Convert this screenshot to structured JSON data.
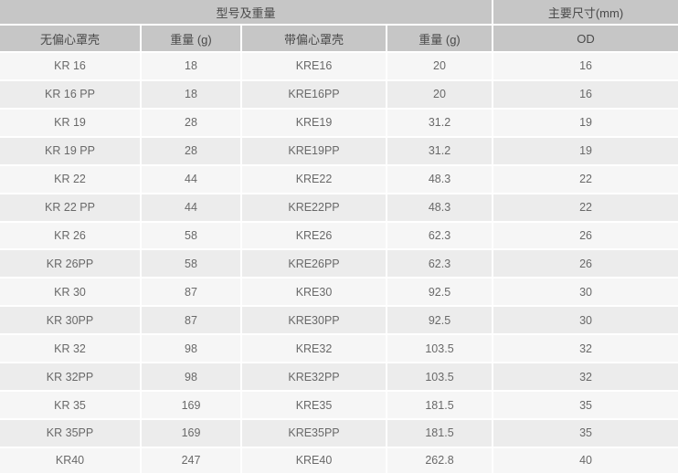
{
  "table": {
    "header_group": {
      "models_weight_label": "型号及重量",
      "main_dimensions_label": "主要尺寸(mm)"
    },
    "columns": [
      "无偏心罩壳",
      "重量 (g)",
      "带偏心罩壳",
      "重量 (g)",
      "OD"
    ],
    "rows": [
      [
        "KR 16",
        "18",
        "KRE16",
        "20",
        "16"
      ],
      [
        "KR 16 PP",
        "18",
        "KRE16PP",
        "20",
        "16"
      ],
      [
        "KR 19",
        "28",
        "KRE19",
        "31.2",
        "19"
      ],
      [
        "KR 19 PP",
        "28",
        "KRE19PP",
        "31.2",
        "19"
      ],
      [
        "KR 22",
        "44",
        "KRE22",
        "48.3",
        "22"
      ],
      [
        "KR 22 PP",
        "44",
        "KRE22PP",
        "48.3",
        "22"
      ],
      [
        "KR 26",
        "58",
        "KRE26",
        "62.3",
        "26"
      ],
      [
        "KR 26PP",
        "58",
        "KRE26PP",
        "62.3",
        "26"
      ],
      [
        "KR 30",
        "87",
        "KRE30",
        "92.5",
        "30"
      ],
      [
        "KR 30PP",
        "87",
        "KRE30PP",
        "92.5",
        "30"
      ],
      [
        "KR 32",
        "98",
        "KRE32",
        "103.5",
        "32"
      ],
      [
        "KR 32PP",
        "98",
        "KRE32PP",
        "103.5",
        "32"
      ],
      [
        "KR 35",
        "169",
        "KRE35",
        "181.5",
        "35"
      ],
      [
        "KR 35PP",
        "169",
        "KRE35PP",
        "181.5",
        "35"
      ],
      [
        "KR40",
        "247",
        "KRE40",
        "262.8",
        "40"
      ]
    ]
  },
  "colors": {
    "header_bg": "#c6c6c6",
    "row_odd_bg": "#f6f6f6",
    "row_even_bg": "#ececec",
    "separator": "#ffffff",
    "header_text": "#4a4a4a",
    "cell_text": "#696969"
  }
}
